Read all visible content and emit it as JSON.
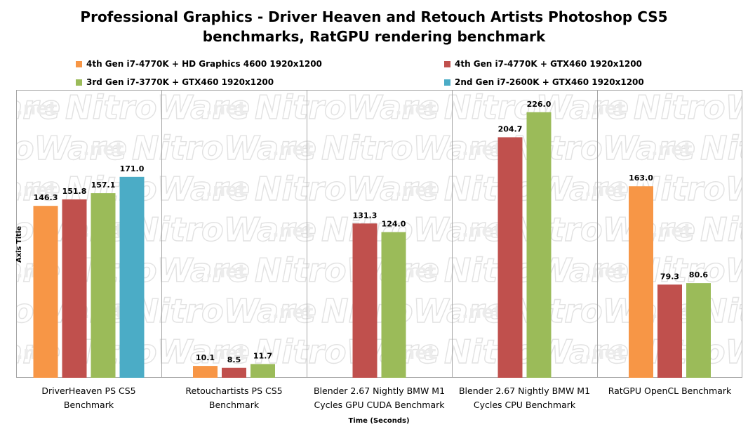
{
  "chart_data": {
    "type": "bar",
    "title_line1": "Professional Graphics - Driver Heaven and Retouch Artists Photoshop CS5",
    "title_line2": "benchmarks, RatGPU rendering benchmark",
    "xlabel": "Time (Seconds)",
    "ylabel": "Axis Title",
    "ylim": [
      0,
      245
    ],
    "grid": false,
    "legend_placement": "top",
    "categories": [
      [
        "DriverHeaven PS CS5",
        "Benchmark"
      ],
      [
        "Retouchartists PS CS5",
        "Benchmark"
      ],
      [
        "Blender 2.67 Nightly BMW M1",
        "Cycles GPU CUDA Benchmark"
      ],
      [
        "Blender 2.67 Nightly BMW M1",
        "Cycles CPU Benchmark"
      ],
      [
        "RatGPU OpenCL Benchmark"
      ]
    ],
    "series": [
      {
        "name": "4th Gen i7-4770K + HD Graphics 4600 1920x1200",
        "color": "#f79646",
        "values": [
          146.3,
          10.1,
          null,
          null,
          163.0
        ],
        "labels": [
          "146.3",
          "10.1",
          null,
          null,
          "163.0"
        ]
      },
      {
        "name": "4th Gen i7-4770K + GTX460 1920x1200",
        "color": "#c0504d",
        "values": [
          151.8,
          8.5,
          131.3,
          204.7,
          79.3
        ],
        "labels": [
          "151.8",
          "8.5",
          "131.3",
          "204.7",
          "79.3"
        ]
      },
      {
        "name": "3rd Gen i7-3770K + GTX460 1920x1200",
        "color": "#9bbb59",
        "values": [
          157.1,
          11.7,
          124.0,
          226.0,
          80.6
        ],
        "labels": [
          "157.1",
          "11.7",
          "124.0",
          "226.0",
          "80.6"
        ]
      },
      {
        "name": "2nd Gen i7-2600K + GTX460 1920x1200",
        "color": "#4bacc6",
        "values": [
          171.0,
          null,
          null,
          null,
          null
        ],
        "labels": [
          "171.0",
          null,
          null,
          null,
          null
        ]
      }
    ]
  },
  "watermark": {
    "site": ".net",
    "brand": "NitroWare"
  }
}
